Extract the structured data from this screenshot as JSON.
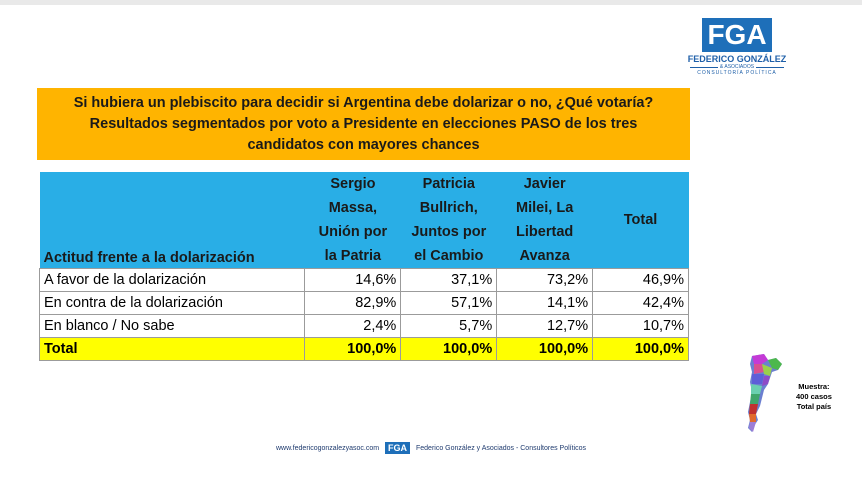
{
  "logo": {
    "letters": "FGA",
    "name": "FEDERICO GONZÁLEZ",
    "sub": "& ASOCIADOS",
    "sub2": "CONSULTORÍA POLÍTICA"
  },
  "title": {
    "line1": "Si hubiera un plebiscito para decidir si Argentina debe dolarizar o no, ¿Qué votaría?",
    "line2": "Resultados segmentados por voto a Presidente en elecciones PASO de los tres",
    "line3": "candidatos con mayores chances"
  },
  "table": {
    "header_label": "Actitud frente a la dolarización",
    "columns": [
      [
        "Sergio",
        "Massa,",
        "Unión por",
        "la Patria"
      ],
      [
        "Patricia",
        "Bullrich,",
        "Juntos por",
        "el Cambio"
      ],
      [
        "Javier",
        "Milei, La",
        "Libertad",
        "Avanza"
      ],
      [
        "Total"
      ]
    ],
    "rows": [
      {
        "label": "A favor de la dolarización",
        "values": [
          "14,6%",
          "37,1%",
          "73,2%",
          "46,9%"
        ]
      },
      {
        "label": "En contra de la dolarización",
        "values": [
          "82,9%",
          "57,1%",
          "14,1%",
          "42,4%"
        ]
      },
      {
        "label": "En blanco / No sabe",
        "values": [
          "2,4%",
          "5,7%",
          "12,7%",
          "10,7%"
        ]
      },
      {
        "label": "Total",
        "values": [
          "100,0%",
          "100,0%",
          "100,0%",
          "100,0%"
        ]
      }
    ]
  },
  "sample": {
    "line1": "Muestra:",
    "line2": "400 casos",
    "line3": "Total país"
  },
  "footer": {
    "website": "www.federicogonzalezyasoc.com",
    "mini_logo": "FGA",
    "company": "Federico González y Asociados - Consultores Políticos"
  }
}
